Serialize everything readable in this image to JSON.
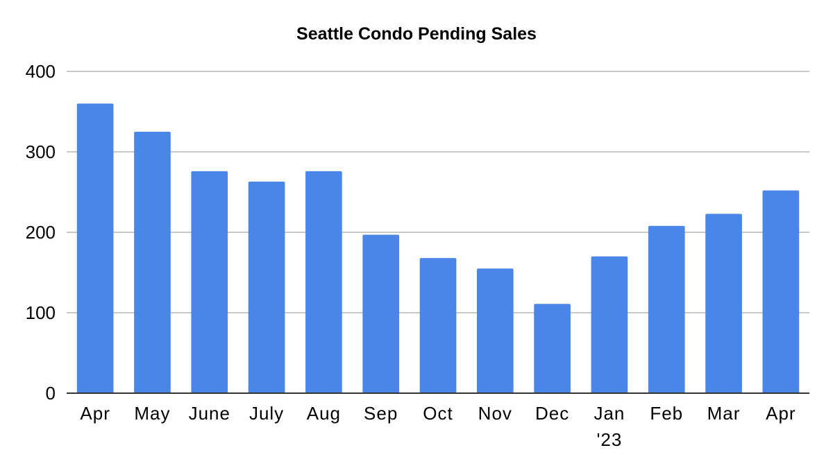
{
  "chart_data": {
    "type": "bar",
    "title": "Seattle Condo Pending Sales",
    "xlabel": "",
    "ylabel": "",
    "categories": [
      "Apr",
      "May",
      "June",
      "July",
      "Aug",
      "Sep",
      "Oct",
      "Nov",
      "Dec",
      "Jan",
      "Feb",
      "Mar",
      "Apr"
    ],
    "category_sublabels": [
      "",
      "",
      "",
      "",
      "",
      "",
      "",
      "",
      "",
      "'23",
      "",
      "",
      ""
    ],
    "values": [
      360,
      325,
      276,
      263,
      276,
      197,
      168,
      155,
      111,
      170,
      208,
      223,
      252
    ],
    "ylim": [
      0,
      400
    ],
    "yticks": [
      0,
      100,
      200,
      300,
      400
    ],
    "grid": true,
    "legend": "none",
    "bar_color": "#4a86e8",
    "grid_color": "#c8c8c8",
    "axis_color": "#333333"
  }
}
